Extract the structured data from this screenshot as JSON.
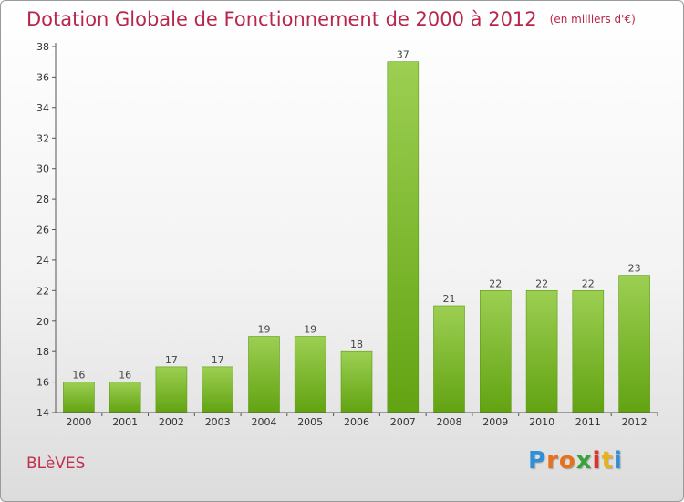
{
  "title": "Dotation Globale de Fonctionnement de 2000 à 2012",
  "subtitle": "(en milliers d'€)",
  "commune": "BLèVES",
  "logo": {
    "text": "Proxiti",
    "letters": [
      {
        "ch": "P",
        "color": "#2f8fd8"
      },
      {
        "ch": "r",
        "color": "#e8711e"
      },
      {
        "ch": "o",
        "color": "#e8711e"
      },
      {
        "ch": "x",
        "color": "#37a337"
      },
      {
        "ch": "i",
        "color": "#d8342c"
      },
      {
        "ch": "t",
        "color": "#e8b21e"
      },
      {
        "ch": "i",
        "color": "#2f8fd8"
      }
    ]
  },
  "colors": {
    "bar_top": "#9ccf52",
    "bar_bottom": "#62a312",
    "title": "#b8264b",
    "axis": "#555555"
  },
  "chart_data": {
    "type": "bar",
    "categories": [
      "2000",
      "2001",
      "2002",
      "2003",
      "2004",
      "2005",
      "2006",
      "2007",
      "2008",
      "2009",
      "2010",
      "2011",
      "2012"
    ],
    "values": [
      16,
      16,
      17,
      17,
      19,
      19,
      18,
      37,
      21,
      22,
      22,
      22,
      23
    ],
    "title": "Dotation Globale de Fonctionnement de 2000 à 2012",
    "subtitle": "(en milliers d'€)",
    "xlabel": "",
    "ylabel": "",
    "ylim": [
      14,
      38
    ],
    "yticks": [
      14,
      16,
      18,
      20,
      22,
      24,
      26,
      28,
      30,
      32,
      34,
      36,
      38
    ],
    "grid": false,
    "legend": "none"
  }
}
